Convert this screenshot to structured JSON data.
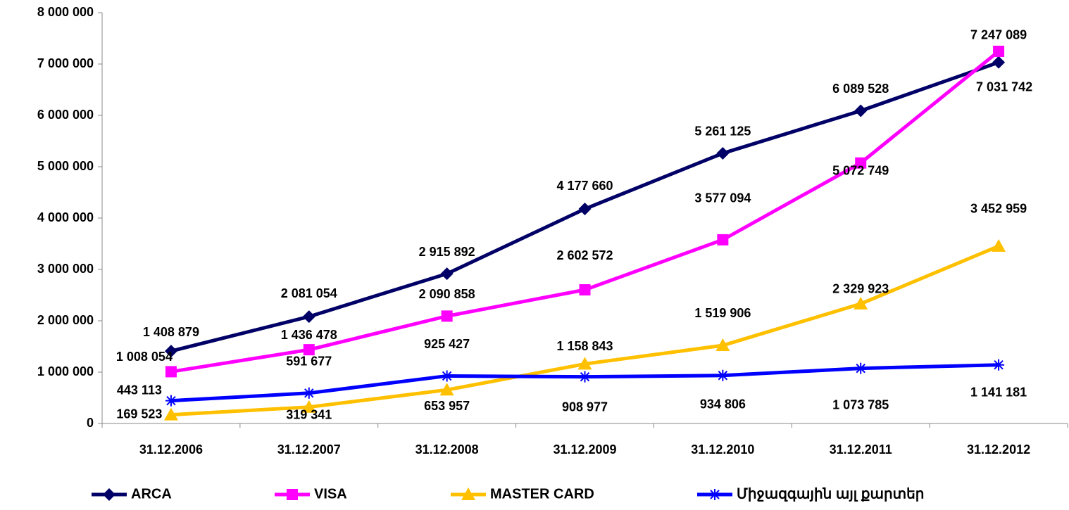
{
  "chart_data": {
    "type": "line",
    "categories": [
      "31.12.2006",
      "31.12.2007",
      "31.12.2008",
      "31.12.2009",
      "31.12.2010",
      "31.12.2011",
      "31.12.2012"
    ],
    "series": [
      {
        "name": "ARCA",
        "color": "#000066",
        "marker": "diamond",
        "values": [
          1408879,
          2081054,
          2915892,
          4177660,
          5261125,
          6089528,
          7031742
        ],
        "value_labels": [
          "1 408 879",
          "2 081 054",
          "2 915 892",
          "4 177 660",
          "5 261 125",
          "6 089 528",
          "7 031 742"
        ]
      },
      {
        "name": "VISA",
        "color": "#ff00ff",
        "marker": "square",
        "values": [
          1008054,
          1436478,
          2090858,
          2602572,
          3577094,
          5072749,
          7247089
        ],
        "value_labels": [
          "1 008 054",
          "1 436 478",
          "2 090 858",
          "2 602 572",
          "3 577 094",
          "5 072 749",
          "7 247 089"
        ]
      },
      {
        "name": "MASTER CARD",
        "color": "#ffc000",
        "marker": "triangle",
        "values": [
          169523,
          319341,
          653957,
          1158843,
          1519906,
          2329923,
          3452959
        ],
        "value_labels": [
          "169 523",
          "319 341",
          "653 957",
          "1 158 843",
          "1 519 906",
          "2 329 923",
          "3 452 959"
        ]
      },
      {
        "name": "Միջազգային այլ քարտեր",
        "color": "#0000ff",
        "marker": "star",
        "values": [
          443113,
          591677,
          925427,
          908977,
          934806,
          1073785,
          1141181
        ],
        "value_labels": [
          "443 113",
          "591 677",
          "925 427",
          "908 977",
          "934 806",
          "1 073 785",
          "1 141 181"
        ]
      }
    ],
    "ylim": [
      0,
      8000000
    ],
    "yticks": [
      0,
      {
        "value": 1000000,
        "label": "1 000 000"
      },
      {
        "value": 2000000,
        "label": "2 000 000"
      },
      {
        "value": 3000000,
        "label": "3 000 000"
      },
      {
        "value": 4000000,
        "label": "4 000 000"
      },
      {
        "value": 5000000,
        "label": "5 000 000"
      },
      {
        "value": 6000000,
        "label": "6 000 000"
      },
      {
        "value": 7000000,
        "label": "7 000 000"
      },
      {
        "value": 8000000,
        "label": "8 000 000"
      }
    ],
    "grid": false,
    "legend": "bottom"
  }
}
